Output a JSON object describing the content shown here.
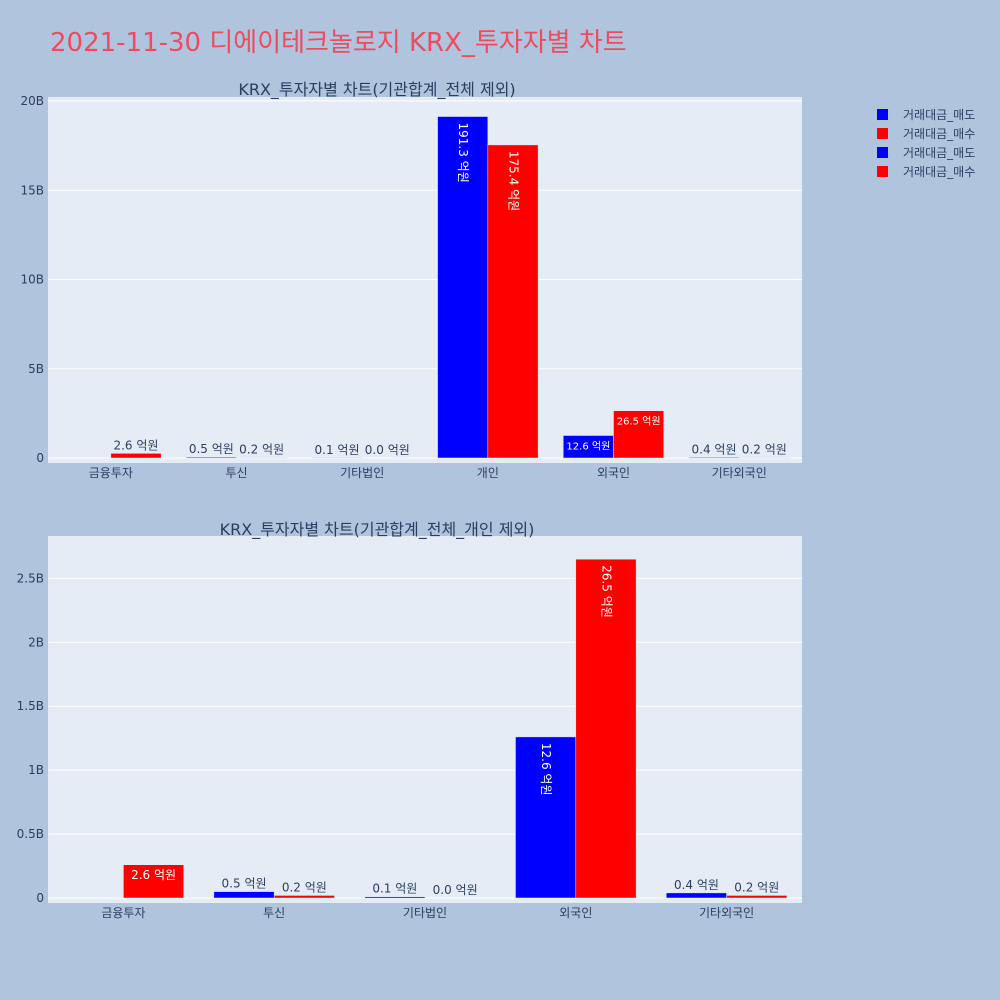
{
  "page": {
    "title": "2021-11-30 디에이테크놀로지 KRX_투자자별 차트"
  },
  "colors": {
    "sell": "#0000ff",
    "buy": "#ff0000",
    "background": "#b0c4de",
    "plot_bg": "#e5ecf6",
    "grid": "#ffffff",
    "text": "#2a3f5f"
  },
  "legend": {
    "items": [
      {
        "label": "거래대금_매도",
        "color": "#0000ff"
      },
      {
        "label": "거래대금_매수",
        "color": "#ff0000"
      },
      {
        "label": "거래대금_매도",
        "color": "#0000ff"
      },
      {
        "label": "거래대금_매수",
        "color": "#ff0000"
      }
    ],
    "placement": "top-right"
  },
  "chart_data": [
    {
      "type": "bar",
      "title": "KRX_투자자별 차트(기관합계_전체 제외)",
      "categories": [
        "금융투자",
        "투신",
        "기타법인",
        "개인",
        "외국인",
        "기타외국인"
      ],
      "ylim": [
        0,
        20000000000
      ],
      "yticks": [
        0,
        5000000000,
        10000000000,
        15000000000,
        20000000000
      ],
      "ytick_labels": [
        "0",
        "5B",
        "10B",
        "15B",
        "20B"
      ],
      "grid": true,
      "series": [
        {
          "name": "거래대금_매도",
          "values": [
            0,
            50000000,
            10000000,
            19130000000,
            1260000000,
            40000000
          ],
          "labels": [
            "",
            "0.5 억원",
            "0.1 억원",
            "191.3 억원",
            "12.6 억원",
            "0.4 억원"
          ]
        },
        {
          "name": "거래대금_매수",
          "values": [
            260000000,
            20000000,
            0,
            17540000000,
            2650000000,
            20000000
          ],
          "labels": [
            "2.6 억원",
            "0.2 억원",
            "0.0 억원",
            "175.4 억원",
            "26.5 억원",
            "0.2 억원"
          ]
        }
      ]
    },
    {
      "type": "bar",
      "title": "KRX_투자자별 차트(기관합계_전체_개인 제외)",
      "categories": [
        "금융투자",
        "투신",
        "기타법인",
        "외국인",
        "기타외국인"
      ],
      "ylim": [
        0,
        2800000000
      ],
      "yticks": [
        0,
        500000000,
        1000000000,
        1500000000,
        2000000000,
        2500000000
      ],
      "ytick_labels": [
        "0",
        "0.5B",
        "1B",
        "1.5B",
        "2B",
        "2.5B"
      ],
      "grid": true,
      "series": [
        {
          "name": "거래대금_매도",
          "values": [
            0,
            50000000,
            10000000,
            1260000000,
            40000000
          ],
          "labels": [
            "",
            "0.5 억원",
            "0.1 억원",
            "12.6 억원",
            "0.4 억원"
          ]
        },
        {
          "name": "거래대금_매수",
          "values": [
            260000000,
            20000000,
            0,
            2650000000,
            20000000
          ],
          "labels": [
            "2.6 억원",
            "0.2 억원",
            "0.0 억원",
            "26.5 억원",
            "0.2 억원"
          ]
        }
      ]
    }
  ]
}
